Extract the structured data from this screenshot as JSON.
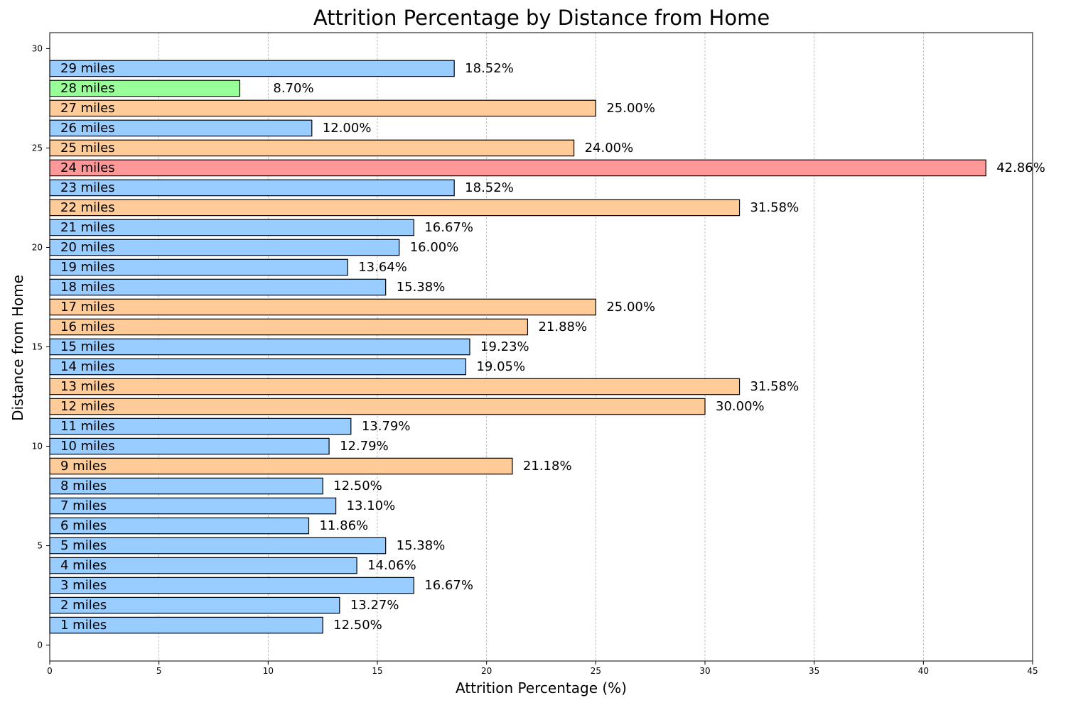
{
  "chart_data": {
    "type": "bar",
    "orientation": "horizontal",
    "title": "Attrition Percentage by Distance from Home",
    "xlabel": "Attrition Percentage (%)",
    "ylabel": "Distance from Home",
    "xlim": [
      0,
      45
    ],
    "ylim": [
      -0.8,
      30.8
    ],
    "xticks": [
      0,
      5,
      10,
      15,
      20,
      25,
      30,
      35,
      40,
      45
    ],
    "yticks": [
      0,
      5,
      10,
      15,
      20,
      25,
      30
    ],
    "grid": "vertical dashed",
    "colors": {
      "low": "#99ccff",
      "medium": "#ffcc99",
      "high": "#ff9999",
      "lowest": "#99ff99",
      "edge": "#000000"
    },
    "categories": [
      1,
      2,
      3,
      4,
      5,
      6,
      7,
      8,
      9,
      10,
      11,
      12,
      13,
      14,
      15,
      16,
      17,
      18,
      19,
      20,
      21,
      22,
      23,
      24,
      25,
      26,
      27,
      28,
      29
    ],
    "bar_labels": [
      "1 miles",
      "2 miles",
      "3 miles",
      "4 miles",
      "5 miles",
      "6 miles",
      "7 miles",
      "8 miles",
      "9 miles",
      "10 miles",
      "11 miles",
      "12 miles",
      "13 miles",
      "14 miles",
      "15 miles",
      "16 miles",
      "17 miles",
      "18 miles",
      "19 miles",
      "20 miles",
      "21 miles",
      "22 miles",
      "23 miles",
      "24 miles",
      "25 miles",
      "26 miles",
      "27 miles",
      "28 miles",
      "29 miles"
    ],
    "values": [
      12.5,
      13.27,
      16.67,
      14.06,
      15.38,
      11.86,
      13.1,
      12.5,
      21.18,
      12.79,
      13.79,
      30.0,
      31.58,
      19.05,
      19.23,
      21.88,
      25.0,
      15.38,
      13.64,
      16.0,
      16.67,
      31.58,
      18.52,
      42.86,
      24.0,
      12.0,
      25.0,
      8.7,
      18.52
    ],
    "value_labels": [
      "12.50%",
      "13.27%",
      "16.67%",
      "14.06%",
      "15.38%",
      "11.86%",
      "13.10%",
      "12.50%",
      "21.18%",
      "12.79%",
      "13.79%",
      "30.00%",
      "31.58%",
      "19.05%",
      "19.23%",
      "21.88%",
      "25.00%",
      "15.38%",
      "13.64%",
      "16.00%",
      "16.67%",
      "31.58%",
      "18.52%",
      "42.86%",
      "24.00%",
      "12.00%",
      "25.00%",
      "8.70%",
      "18.52%"
    ],
    "bar_color_keys": [
      "low",
      "low",
      "low",
      "low",
      "low",
      "low",
      "low",
      "low",
      "medium",
      "low",
      "low",
      "medium",
      "medium",
      "low",
      "low",
      "medium",
      "medium",
      "low",
      "low",
      "low",
      "low",
      "medium",
      "low",
      "high",
      "medium",
      "low",
      "medium",
      "lowest",
      "low"
    ]
  }
}
